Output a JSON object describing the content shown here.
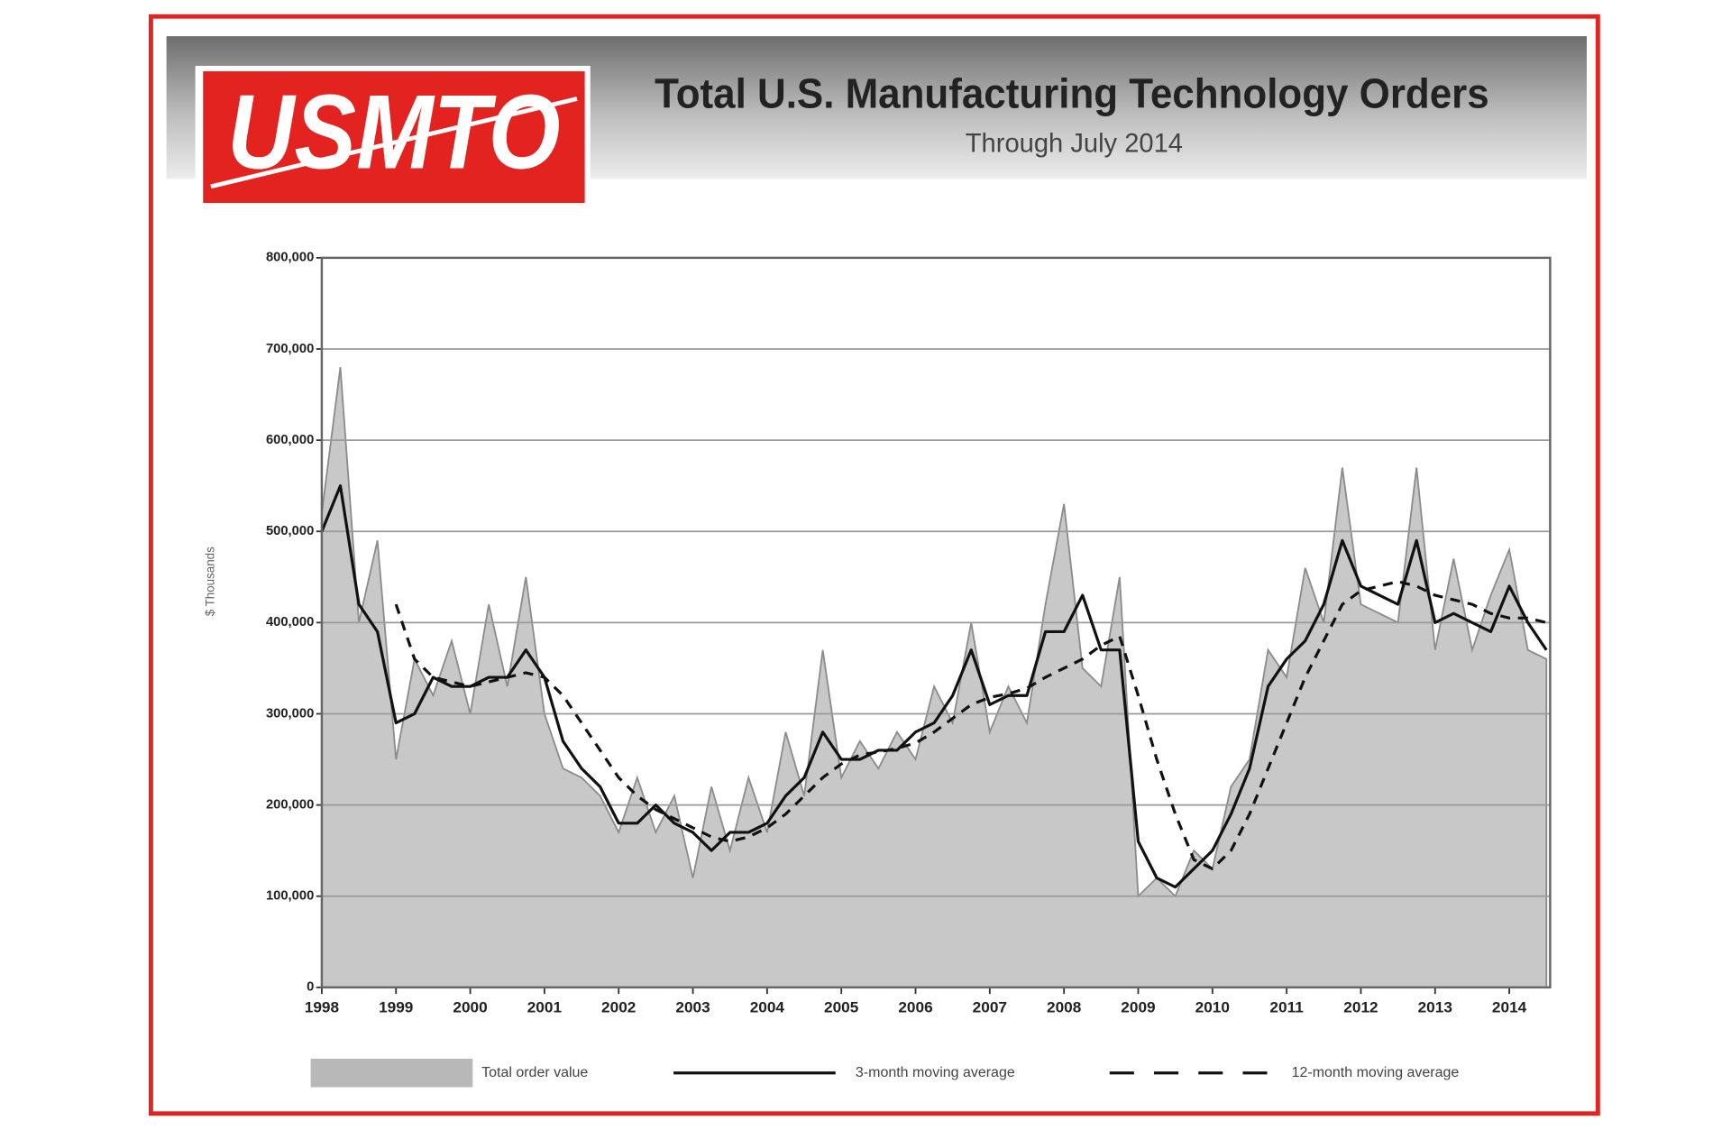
{
  "logo": {
    "text": "USMTO"
  },
  "chart_data": {
    "type": "line",
    "title": "Total U.S. Manufacturing Technology Orders",
    "subtitle": "Through July 2014",
    "ylabel": "$ Thousands",
    "x": [
      1998,
      1998.25,
      1998.5,
      1998.75,
      1999,
      1999.25,
      1999.5,
      1999.75,
      2000,
      2000.25,
      2000.5,
      2000.75,
      2001,
      2001.25,
      2001.5,
      2001.75,
      2002,
      2002.25,
      2002.5,
      2002.75,
      2003,
      2003.25,
      2003.5,
      2003.75,
      2004,
      2004.25,
      2004.5,
      2004.75,
      2005,
      2005.25,
      2005.5,
      2005.75,
      2006,
      2006.25,
      2006.5,
      2006.75,
      2007,
      2007.25,
      2007.5,
      2007.75,
      2008,
      2008.25,
      2008.5,
      2008.75,
      2009,
      2009.25,
      2009.5,
      2009.75,
      2010,
      2010.25,
      2010.5,
      2010.75,
      2011,
      2011.25,
      2011.5,
      2011.75,
      2012,
      2012.25,
      2012.5,
      2012.75,
      2013,
      2013.25,
      2013.5,
      2013.75,
      2014,
      2014.25,
      2014.5
    ],
    "series": [
      {
        "name": "Total order value",
        "type": "area",
        "color": "#c8c8c8",
        "line_style": "solid",
        "values": [
          520000,
          680000,
          400000,
          490000,
          250000,
          360000,
          320000,
          380000,
          300000,
          420000,
          330000,
          450000,
          300000,
          240000,
          230000,
          210000,
          170000,
          230000,
          170000,
          210000,
          120000,
          220000,
          150000,
          230000,
          170000,
          280000,
          210000,
          370000,
          230000,
          270000,
          240000,
          280000,
          250000,
          330000,
          290000,
          400000,
          280000,
          330000,
          290000,
          420000,
          530000,
          350000,
          330000,
          450000,
          100000,
          120000,
          100000,
          150000,
          130000,
          220000,
          250000,
          370000,
          340000,
          460000,
          400000,
          570000,
          420000,
          410000,
          400000,
          570000,
          370000,
          470000,
          370000,
          430000,
          480000,
          370000,
          360000
        ]
      },
      {
        "name": "3-month moving average",
        "type": "line",
        "color": "#111111",
        "line_style": "solid",
        "values": [
          500000,
          550000,
          420000,
          390000,
          290000,
          300000,
          340000,
          330000,
          330000,
          340000,
          340000,
          370000,
          340000,
          270000,
          240000,
          220000,
          180000,
          180000,
          200000,
          180000,
          170000,
          150000,
          170000,
          170000,
          180000,
          210000,
          230000,
          280000,
          250000,
          250000,
          260000,
          260000,
          280000,
          290000,
          320000,
          370000,
          310000,
          320000,
          320000,
          390000,
          390000,
          430000,
          370000,
          370000,
          160000,
          120000,
          110000,
          130000,
          150000,
          190000,
          240000,
          330000,
          360000,
          380000,
          420000,
          490000,
          440000,
          430000,
          420000,
          490000,
          400000,
          410000,
          400000,
          390000,
          440000,
          400000,
          370000
        ]
      },
      {
        "name": "12-month moving average",
        "type": "line",
        "color": "#111111",
        "line_style": "dashed",
        "values": [
          null,
          null,
          null,
          null,
          420000,
          360000,
          340000,
          335000,
          330000,
          335000,
          340000,
          345000,
          340000,
          320000,
          290000,
          260000,
          230000,
          210000,
          195000,
          185000,
          175000,
          165000,
          160000,
          165000,
          175000,
          190000,
          210000,
          230000,
          245000,
          255000,
          258000,
          262000,
          268000,
          280000,
          295000,
          310000,
          318000,
          322000,
          328000,
          340000,
          350000,
          360000,
          375000,
          385000,
          320000,
          250000,
          190000,
          140000,
          130000,
          150000,
          190000,
          240000,
          290000,
          340000,
          380000,
          420000,
          435000,
          440000,
          445000,
          440000,
          430000,
          425000,
          420000,
          410000,
          405000,
          405000,
          400000
        ]
      }
    ],
    "xlim": [
      1998,
      2014.55
    ],
    "xticks": [
      1998,
      1999,
      2000,
      2001,
      2002,
      2003,
      2004,
      2005,
      2006,
      2007,
      2008,
      2009,
      2010,
      2011,
      2012,
      2013,
      2014
    ],
    "ylim": [
      0,
      800000
    ],
    "yticks": [
      0,
      {
        "value": 100000,
        "label": "100,000"
      },
      {
        "value": 200000,
        "label": "200,000"
      },
      {
        "value": 300000,
        "label": "300,000"
      },
      {
        "value": 400000,
        "label": "400,000"
      },
      {
        "value": 500000,
        "label": "500,000"
      },
      {
        "value": 600000,
        "label": "600,000"
      },
      {
        "value": 700000,
        "label": "700,000"
      },
      {
        "value": 800000,
        "label": "800,000"
      }
    ],
    "grid": true,
    "legend": "bottom"
  }
}
